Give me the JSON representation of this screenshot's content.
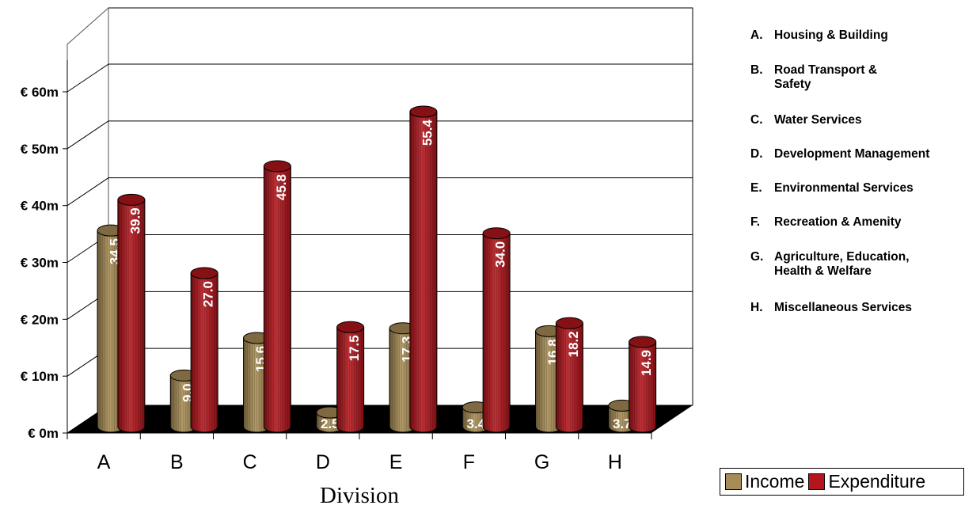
{
  "chart_data": {
    "type": "bar",
    "title": "",
    "xlabel": "Division",
    "ylabel": "",
    "ylim": [
      0,
      60
    ],
    "y_ticks": [
      "€ 0m",
      "€ 10m",
      "€ 20m",
      "€ 30m",
      "€ 40m",
      "€ 50m",
      "€ 60m"
    ],
    "y_tick_values": [
      0,
      10,
      20,
      30,
      40,
      50,
      60
    ],
    "categories": [
      "A",
      "B",
      "C",
      "D",
      "E",
      "F",
      "G",
      "H"
    ],
    "series": [
      {
        "name": "Income",
        "color": "#a88c55",
        "values": [
          34.5,
          9.0,
          15.6,
          2.5,
          17.3,
          3.4,
          16.8,
          3.7
        ],
        "labels": [
          "34.5",
          "9.0",
          "15.6",
          "2.5",
          "17.3",
          "3.4",
          "16.8",
          "3.7"
        ]
      },
      {
        "name": "Expenditure",
        "color": "#b3161c",
        "values": [
          39.9,
          27.0,
          45.8,
          17.5,
          55.4,
          34.0,
          18.2,
          14.9
        ],
        "labels": [
          "39.9",
          "27.0",
          "45.8",
          "17.5",
          "55.4",
          "34.0",
          "18.2",
          "14.9"
        ]
      }
    ],
    "grid": true,
    "legend_position": "bottom-right"
  },
  "category_key": [
    {
      "key": "A.",
      "text": "Housing & Building"
    },
    {
      "key": "B.",
      "text": "Road Transport &\nSafety"
    },
    {
      "key": "C.",
      "text": "Water Services"
    },
    {
      "key": "D.",
      "text": "Development Management"
    },
    {
      "key": "E.",
      "text": "Environmental Services"
    },
    {
      "key": "F.",
      "text": "Recreation & Amenity"
    },
    {
      "key": "G.",
      "text": "Agriculture, Education,\nHealth & Welfare"
    },
    {
      "key": "H.",
      "text": "Miscellaneous Services"
    }
  ]
}
